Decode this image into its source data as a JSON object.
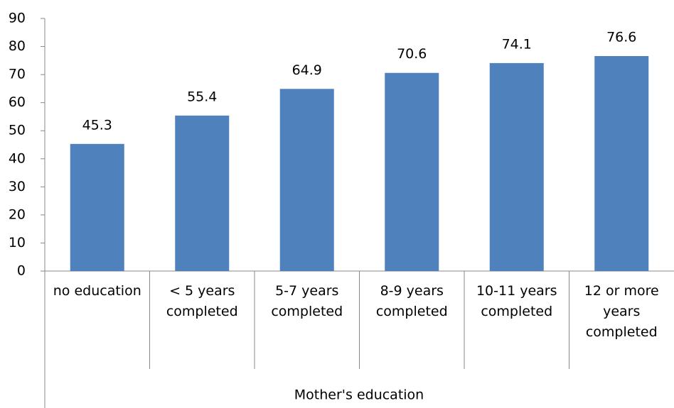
{
  "chart_data": {
    "type": "bar",
    "categories": [
      "no education",
      "< 5 years completed",
      "5-7 years completed",
      "8-9 years completed",
      "10-11 years completed",
      "12 or more years completed"
    ],
    "values": [
      45.3,
      55.4,
      64.9,
      70.6,
      74.1,
      76.6
    ],
    "color": "#4f81bd",
    "xlabel": "Mother's education",
    "ylim": [
      0,
      90
    ],
    "yticks": [
      0,
      10,
      20,
      30,
      40,
      50,
      60,
      70,
      80,
      90
    ]
  }
}
